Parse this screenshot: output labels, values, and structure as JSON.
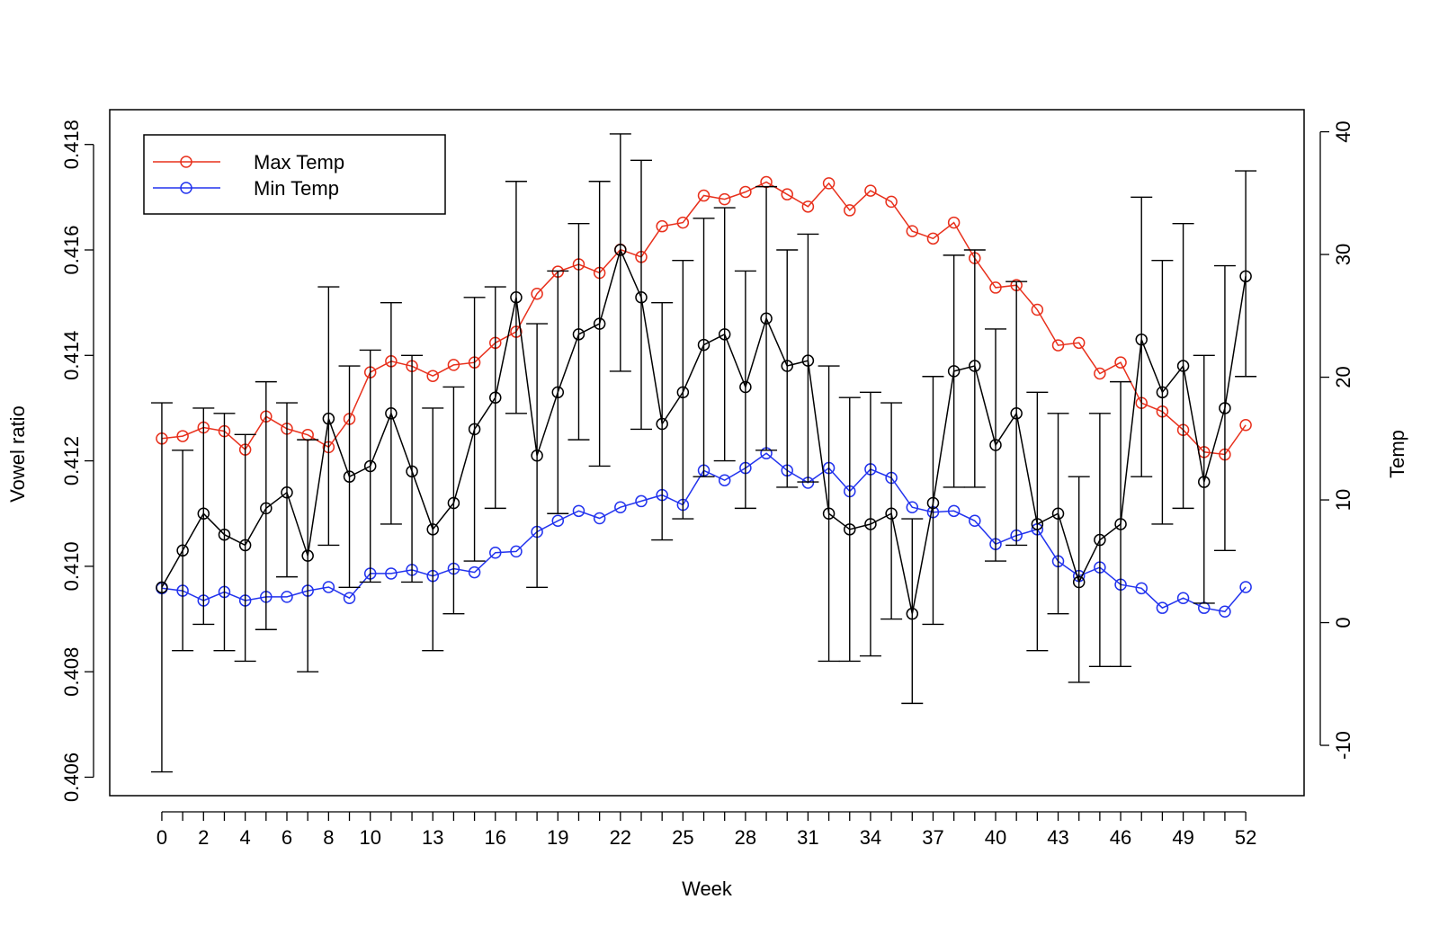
{
  "chart_data": {
    "type": "line",
    "title": "",
    "xlabel": "Week",
    "ylabel_left": "Vowel ratio",
    "ylabel_right": "Temp",
    "x": [
      0,
      1,
      2,
      3,
      4,
      5,
      6,
      7,
      8,
      9,
      10,
      11,
      12,
      13,
      14,
      15,
      16,
      17,
      18,
      19,
      20,
      21,
      22,
      23,
      24,
      25,
      26,
      27,
      28,
      29,
      30,
      31,
      32,
      33,
      34,
      35,
      36,
      37,
      38,
      39,
      40,
      41,
      42,
      43,
      44,
      45,
      46,
      47,
      48,
      49,
      50,
      51,
      52
    ],
    "x_ticks": [
      0,
      2,
      4,
      6,
      8,
      10,
      13,
      16,
      19,
      22,
      25,
      28,
      31,
      34,
      37,
      40,
      43,
      46,
      49,
      52
    ],
    "xlim": [
      -2.5,
      54.8
    ],
    "ylim_left": [
      0.40565,
      0.41866
    ],
    "ylim_right": [
      -14.1,
      41.8
    ],
    "yticks_left": [
      0.406,
      0.408,
      0.41,
      0.412,
      0.414,
      0.416,
      0.418
    ],
    "yticks_left_labels": [
      "0.406",
      "0.408",
      "0.410",
      "0.412",
      "0.414",
      "0.416",
      "0.418"
    ],
    "yticks_right": [
      -10,
      0,
      10,
      20,
      30,
      40
    ],
    "yticks_right_labels": [
      "-10",
      "0",
      "10",
      "20",
      "30",
      "40"
    ],
    "legend": {
      "position": "top-left",
      "entries": [
        {
          "label": "Max Temp",
          "color": "#e8301c"
        },
        {
          "label": "Min Temp",
          "color": "#2233ee"
        }
      ]
    },
    "series": [
      {
        "name": "",
        "axis": "left",
        "color": "#000000",
        "values": [
          0.4096,
          0.4103,
          0.411,
          0.4106,
          0.4104,
          0.4111,
          0.4114,
          0.4102,
          0.4128,
          0.4117,
          0.4119,
          0.4129,
          0.4118,
          0.4107,
          0.4112,
          0.4126,
          0.4132,
          0.4151,
          0.4121,
          0.4133,
          0.4144,
          0.4146,
          0.416,
          0.4151,
          0.4127,
          0.4133,
          0.4142,
          0.4144,
          0.4134,
          0.4147,
          0.4138,
          0.4139,
          0.411,
          0.4107,
          0.4108,
          0.411,
          0.4091,
          0.4112,
          0.4137,
          0.4138,
          0.4123,
          0.4129,
          0.4108,
          0.411,
          0.4097,
          0.4105,
          0.4108,
          0.4143,
          0.4133,
          0.4138,
          0.4116,
          0.413,
          0.4155
        ],
        "error_upper": [
          0.4131,
          0.4122,
          0.413,
          0.4129,
          0.4125,
          0.4135,
          0.4131,
          0.4124,
          0.4153,
          0.4138,
          0.4141,
          0.415,
          0.414,
          0.413,
          0.4134,
          0.4151,
          0.4153,
          0.4173,
          0.4146,
          0.4156,
          0.4165,
          0.4173,
          0.4182,
          0.4177,
          0.415,
          0.4158,
          0.4166,
          0.4168,
          0.4156,
          0.4172,
          0.416,
          0.4163,
          0.4138,
          0.4132,
          0.4133,
          0.4131,
          0.4109,
          0.4136,
          0.4159,
          0.416,
          0.4145,
          0.4154,
          0.4133,
          0.4129,
          0.4117,
          0.4129,
          0.4135,
          0.417,
          0.4158,
          0.4165,
          0.414,
          0.4157,
          0.4175
        ],
        "error_lower": [
          0.4061,
          0.4084,
          0.4089,
          0.4084,
          0.4082,
          0.4088,
          0.4098,
          0.408,
          0.4104,
          0.4096,
          0.4097,
          0.4108,
          0.4097,
          0.4084,
          0.4091,
          0.4101,
          0.4111,
          0.4129,
          0.4096,
          0.411,
          0.4124,
          0.4119,
          0.4137,
          0.4126,
          0.4105,
          0.4109,
          0.4117,
          0.412,
          0.4111,
          0.4122,
          0.4115,
          0.4116,
          0.4082,
          0.4082,
          0.4083,
          0.409,
          0.4074,
          0.4089,
          0.4115,
          0.4115,
          0.4101,
          0.4104,
          0.4084,
          0.4091,
          0.4078,
          0.4081,
          0.4081,
          0.4117,
          0.4108,
          0.4111,
          0.4093,
          0.4103,
          0.4136
        ]
      },
      {
        "name": "Max Temp",
        "axis": "right",
        "color": "#e8301c",
        "values": [
          15.0,
          15.2,
          15.9,
          15.6,
          14.1,
          16.8,
          15.8,
          15.3,
          14.3,
          16.6,
          20.4,
          21.3,
          20.9,
          20.1,
          21.0,
          21.2,
          22.8,
          23.7,
          26.8,
          28.6,
          29.2,
          28.5,
          30.4,
          29.8,
          32.3,
          32.6,
          34.8,
          34.5,
          35.1,
          35.9,
          34.9,
          33.9,
          35.8,
          33.6,
          35.2,
          34.3,
          31.9,
          31.3,
          32.6,
          29.7,
          27.3,
          27.5,
          25.5,
          22.6,
          22.8,
          20.3,
          21.2,
          17.9,
          17.2,
          15.7,
          13.9,
          13.7,
          16.1
        ]
      },
      {
        "name": "Min Temp",
        "axis": "right",
        "color": "#2233ee",
        "values": [
          2.8,
          2.6,
          1.8,
          2.5,
          1.8,
          2.1,
          2.1,
          2.6,
          2.9,
          2.0,
          4.0,
          4.0,
          4.3,
          3.8,
          4.4,
          4.1,
          5.7,
          5.8,
          7.4,
          8.3,
          9.1,
          8.5,
          9.4,
          9.9,
          10.4,
          9.6,
          12.4,
          11.6,
          12.6,
          13.8,
          12.4,
          11.4,
          12.6,
          10.7,
          12.5,
          11.8,
          9.4,
          9.0,
          9.1,
          8.3,
          6.4,
          7.1,
          7.6,
          5.0,
          3.8,
          4.5,
          3.1,
          2.8,
          1.2,
          2.0,
          1.2,
          0.9,
          2.9
        ]
      }
    ]
  }
}
